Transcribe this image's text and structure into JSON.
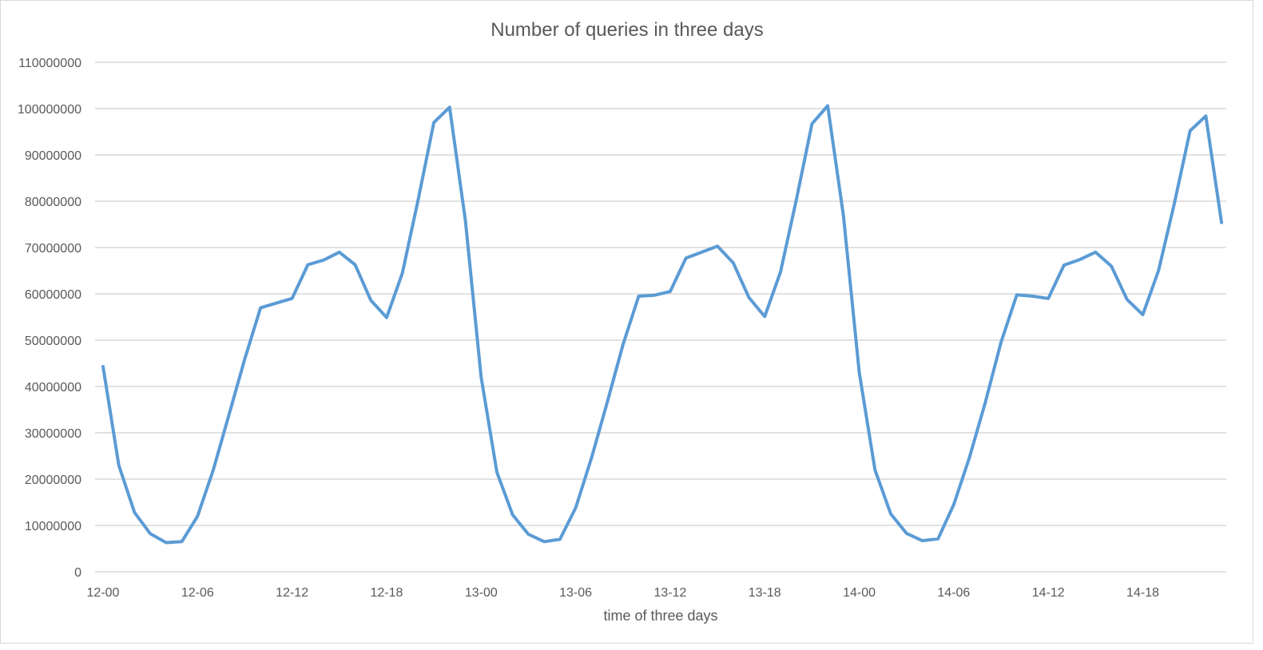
{
  "chart_data": {
    "type": "line",
    "title": "Number of queries in three days",
    "xlabel": "time of three days",
    "ylabel": "",
    "ylim": [
      0,
      110000000
    ],
    "y_ticks": [
      0,
      10000000,
      20000000,
      30000000,
      40000000,
      50000000,
      60000000,
      70000000,
      80000000,
      90000000,
      100000000,
      110000000
    ],
    "x_tick_labels": [
      "12-00",
      "12-06",
      "12-12",
      "12-18",
      "13-00",
      "13-06",
      "13-12",
      "13-18",
      "14-00",
      "14-06",
      "14-12",
      "14-18"
    ],
    "x_tick_every": 6,
    "grid": true,
    "legend": "none",
    "colors": {
      "series": "#5b9bd5",
      "grid": "#d9d9d9",
      "text": "#595959"
    },
    "series": [
      {
        "values": [
          44300000,
          23000000,
          12800000,
          8200000,
          6300000,
          6500000,
          12000000,
          22000000,
          34000000,
          46000000,
          57000000,
          58000000,
          59000000,
          66300000,
          67300000,
          69000000,
          66300000,
          58600000,
          54900000,
          64500000,
          80300000,
          97000000,
          100300000,
          75800000,
          42000000,
          21500000,
          12300000,
          8100000,
          6500000,
          7000000,
          13800000,
          24500000,
          36500000,
          49000000,
          59500000,
          59700000,
          60500000,
          67700000,
          69000000,
          70300000,
          66700000,
          59200000,
          55100000,
          64700000,
          80200000,
          96700000,
          100600000,
          76900000,
          43000000,
          22000000,
          12500000,
          8300000,
          6700000,
          7100000,
          14500000,
          24700000,
          36500000,
          49500000,
          59800000,
          59500000,
          59000000,
          66200000,
          67400000,
          69000000,
          66000000,
          58800000,
          55500000,
          65000000,
          79500000,
          95200000,
          98400000,
          75400000
        ]
      }
    ]
  }
}
